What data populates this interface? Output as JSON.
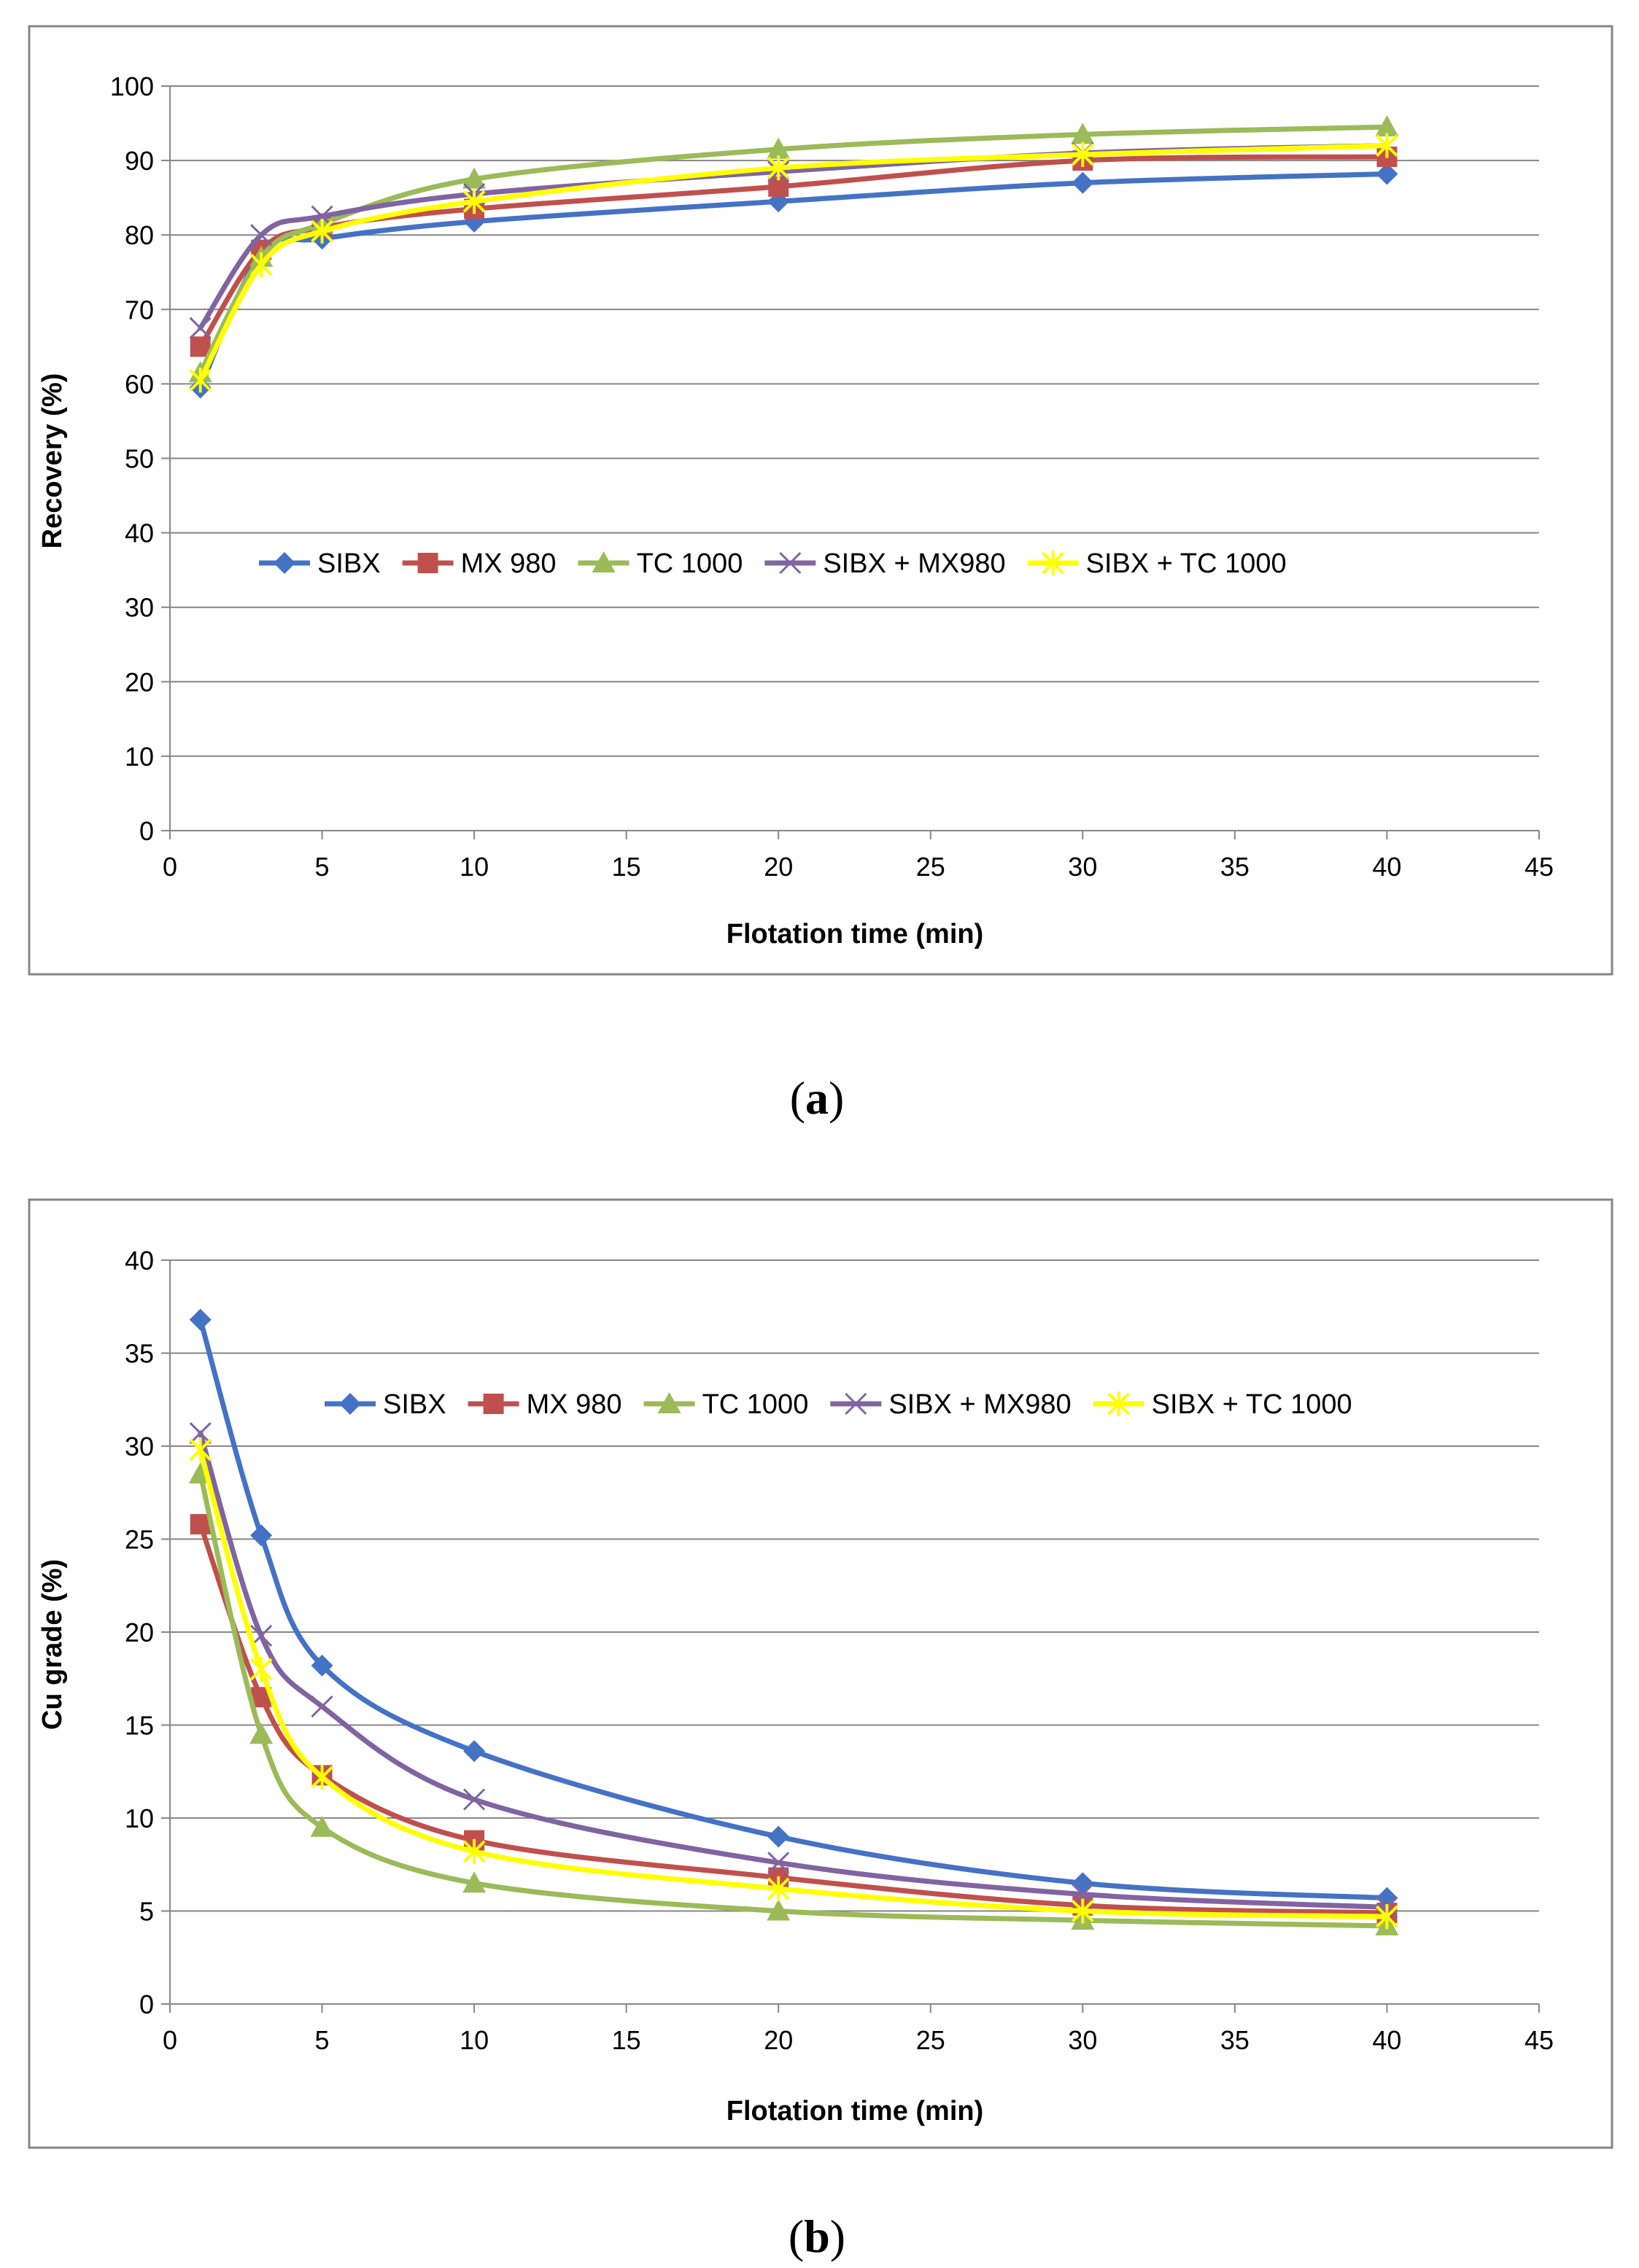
{
  "chart_data": [
    {
      "type": "line",
      "caption": "a",
      "xlabel": "Flotation time (min)",
      "ylabel": "Recovery (%)",
      "xlim": [
        0,
        45
      ],
      "ylim": [
        0,
        100
      ],
      "xticks": [
        0,
        5,
        10,
        15,
        20,
        25,
        30,
        35,
        40,
        45
      ],
      "yticks": [
        0,
        10,
        20,
        30,
        40,
        50,
        60,
        70,
        80,
        90,
        100
      ],
      "grid": "horizontal",
      "legend_position": "middle",
      "x": [
        1,
        3,
        5,
        10,
        20,
        30,
        40
      ],
      "series": [
        {
          "name": "SIBX",
          "color": "#4472C4",
          "marker": "diamond",
          "values": [
            59.5,
            77.5,
            79.5,
            81.8,
            84.5,
            87.0,
            88.2
          ]
        },
        {
          "name": "MX 980",
          "color": "#C0504D",
          "marker": "square",
          "values": [
            65.0,
            78.0,
            81.0,
            83.5,
            86.5,
            90.0,
            90.5
          ]
        },
        {
          "name": "TC 1000",
          "color": "#9BBB59",
          "marker": "triangle",
          "values": [
            61.5,
            77.0,
            81.5,
            87.5,
            91.5,
            93.5,
            94.5
          ]
        },
        {
          "name": "SIBX + MX980",
          "color": "#8064A2",
          "marker": "x",
          "values": [
            67.5,
            80.0,
            82.5,
            85.5,
            88.5,
            91.0,
            92.0
          ]
        },
        {
          "name": "SIBX + TC 1000",
          "color": "#FFFF00",
          "marker": "star",
          "values": [
            60.5,
            76.0,
            80.5,
            84.5,
            89.0,
            90.8,
            92.0
          ]
        }
      ]
    },
    {
      "type": "line",
      "caption": "b",
      "xlabel": "Flotation time (min)",
      "ylabel": "Cu grade (%)",
      "xlim": [
        0,
        45
      ],
      "ylim": [
        0,
        40
      ],
      "xticks": [
        0,
        5,
        10,
        15,
        20,
        25,
        30,
        35,
        40,
        45
      ],
      "yticks": [
        0,
        5,
        10,
        15,
        20,
        25,
        30,
        35,
        40
      ],
      "grid": "horizontal",
      "legend_position": "top-right",
      "x": [
        1,
        3,
        5,
        10,
        20,
        30,
        40
      ],
      "series": [
        {
          "name": "SIBX",
          "color": "#4472C4",
          "marker": "diamond",
          "values": [
            36.8,
            25.2,
            18.2,
            13.6,
            9.0,
            6.5,
            5.7
          ]
        },
        {
          "name": "MX 980",
          "color": "#C0504D",
          "marker": "square",
          "values": [
            25.8,
            16.5,
            12.3,
            8.8,
            6.8,
            5.3,
            4.9
          ]
        },
        {
          "name": "TC 1000",
          "color": "#9BBB59",
          "marker": "triangle",
          "values": [
            28.5,
            14.5,
            9.5,
            6.5,
            5.0,
            4.5,
            4.2
          ]
        },
        {
          "name": "SIBX + MX980",
          "color": "#8064A2",
          "marker": "x",
          "values": [
            30.7,
            19.8,
            16.0,
            11.0,
            7.6,
            5.9,
            5.2
          ]
        },
        {
          "name": "SIBX + TC 1000",
          "color": "#FFFF00",
          "marker": "star",
          "values": [
            29.8,
            18.0,
            12.2,
            8.2,
            6.2,
            5.0,
            4.7
          ]
        }
      ]
    }
  ]
}
